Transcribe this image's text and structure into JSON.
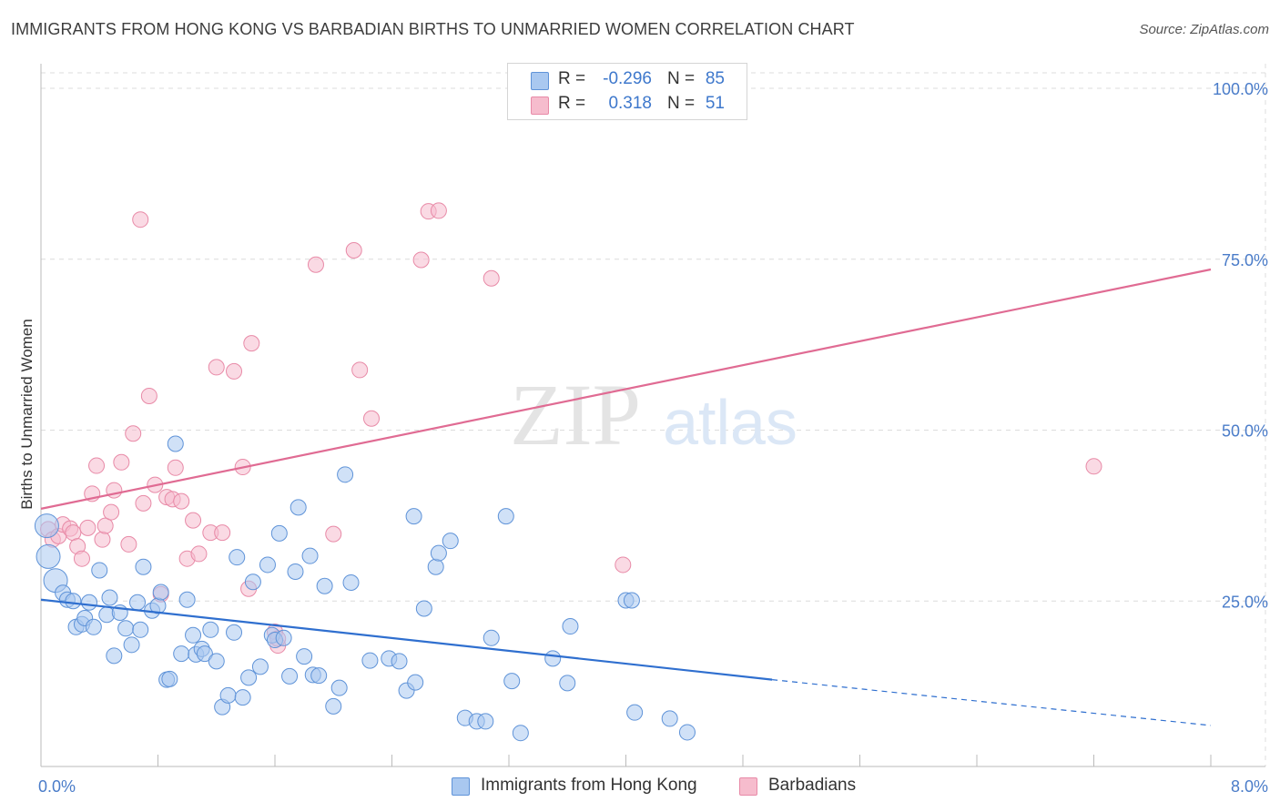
{
  "title": "IMMIGRANTS FROM HONG KONG VS BARBADIAN BIRTHS TO UNMARRIED WOMEN CORRELATION CHART",
  "source": "Source: ZipAtlas.com",
  "watermark": {
    "zip": "ZIP",
    "atlas": "atlas"
  },
  "colors": {
    "blue_fill": "#a9c8f0",
    "blue_stroke": "#5f93d8",
    "blue_line": "#2f6fcf",
    "pink_fill": "#f6bccd",
    "pink_stroke": "#e88aa7",
    "pink_line": "#e06b93",
    "tick_text": "#4a7cc9",
    "grid": "#dcdcdc"
  },
  "legend": {
    "rows": [
      {
        "r_label": "R =",
        "r_value": "-0.296",
        "n_label": "N =",
        "n_value": "85"
      },
      {
        "r_label": "R =",
        "r_value": "0.318",
        "n_label": "N =",
        "n_value": "51"
      }
    ]
  },
  "bottom_legend": {
    "series1": "Immigrants from Hong Kong",
    "series2": "Barbadians"
  },
  "chart_data": {
    "type": "scatter",
    "title": "IMMIGRANTS FROM HONG KONG VS BARBADIAN BIRTHS TO UNMARRIED WOMEN CORRELATION CHART",
    "xlabel": "",
    "ylabel": "Births to Unmarried Women",
    "xlim": [
      0,
      8
    ],
    "ylim": [
      0,
      103
    ],
    "x_tick_labels": [
      "0.0%",
      "8.0%"
    ],
    "y_ticks": [
      25,
      50,
      75,
      100
    ],
    "y_tick_labels": [
      "25.0%",
      "50.0%",
      "75.0%",
      "100.0%"
    ],
    "grid": true,
    "legend_position": "top-center",
    "series": [
      {
        "name": "Immigrants from Hong Kong",
        "color": "#a9c8f0",
        "trend": {
          "x": [
            0,
            5.0
          ],
          "y": [
            25.2,
            13.5
          ],
          "dashed_to": [
            8.0,
            6.8
          ]
        },
        "points": [
          [
            0.04,
            36.0
          ],
          [
            0.05,
            31.5
          ],
          [
            0.1,
            28.0
          ],
          [
            0.15,
            26.2
          ],
          [
            0.18,
            25.2
          ],
          [
            0.22,
            25.0
          ],
          [
            0.24,
            21.2
          ],
          [
            0.28,
            21.6
          ],
          [
            0.3,
            22.5
          ],
          [
            0.33,
            24.8
          ],
          [
            0.36,
            21.2
          ],
          [
            0.4,
            29.5
          ],
          [
            0.45,
            23.0
          ],
          [
            0.47,
            25.5
          ],
          [
            0.5,
            17.0
          ],
          [
            0.54,
            23.3
          ],
          [
            0.58,
            21.0
          ],
          [
            0.62,
            18.6
          ],
          [
            0.66,
            24.8
          ],
          [
            0.68,
            20.8
          ],
          [
            0.7,
            30.0
          ],
          [
            0.76,
            23.6
          ],
          [
            0.8,
            24.3
          ],
          [
            0.82,
            26.3
          ],
          [
            0.86,
            13.5
          ],
          [
            0.88,
            13.6
          ],
          [
            0.92,
            48.0
          ],
          [
            0.96,
            17.3
          ],
          [
            1.0,
            25.2
          ],
          [
            1.04,
            20.0
          ],
          [
            1.06,
            17.2
          ],
          [
            1.1,
            18.0
          ],
          [
            1.12,
            17.3
          ],
          [
            1.16,
            20.8
          ],
          [
            1.2,
            16.2
          ],
          [
            1.24,
            9.5
          ],
          [
            1.28,
            11.2
          ],
          [
            1.32,
            20.4
          ],
          [
            1.34,
            31.4
          ],
          [
            1.38,
            10.9
          ],
          [
            1.42,
            13.8
          ],
          [
            1.45,
            27.8
          ],
          [
            1.5,
            15.4
          ],
          [
            1.55,
            30.3
          ],
          [
            1.58,
            20.0
          ],
          [
            1.6,
            19.3
          ],
          [
            1.63,
            34.9
          ],
          [
            1.66,
            19.6
          ],
          [
            1.7,
            14.0
          ],
          [
            1.74,
            29.3
          ],
          [
            1.76,
            38.7
          ],
          [
            1.8,
            16.9
          ],
          [
            1.84,
            31.6
          ],
          [
            1.86,
            14.2
          ],
          [
            1.9,
            14.1
          ],
          [
            1.94,
            27.2
          ],
          [
            2.0,
            9.6
          ],
          [
            2.04,
            12.3
          ],
          [
            2.08,
            43.5
          ],
          [
            2.12,
            27.7
          ],
          [
            2.25,
            16.3
          ],
          [
            2.38,
            16.6
          ],
          [
            2.45,
            16.2
          ],
          [
            2.5,
            11.9
          ],
          [
            2.55,
            37.4
          ],
          [
            2.56,
            13.1
          ],
          [
            2.62,
            23.9
          ],
          [
            2.7,
            30.0
          ],
          [
            2.72,
            32.0
          ],
          [
            2.8,
            33.8
          ],
          [
            2.9,
            7.9
          ],
          [
            2.98,
            7.4
          ],
          [
            3.04,
            7.4
          ],
          [
            3.08,
            19.6
          ],
          [
            3.18,
            37.4
          ],
          [
            3.22,
            13.3
          ],
          [
            3.28,
            5.7
          ],
          [
            3.5,
            16.6
          ],
          [
            3.6,
            13.0
          ],
          [
            3.62,
            21.3
          ],
          [
            4.0,
            25.1
          ],
          [
            4.04,
            25.1
          ],
          [
            4.06,
            8.7
          ],
          [
            4.3,
            7.8
          ],
          [
            4.42,
            5.8
          ]
        ],
        "sizes_large": [
          [
            0.05,
            31.5
          ],
          [
            0.1,
            28.0
          ],
          [
            0.04,
            36.0
          ]
        ]
      },
      {
        "name": "Barbadians",
        "color": "#f6bccd",
        "trend": {
          "x": [
            0,
            8.0
          ],
          "y": [
            38.5,
            73.5
          ]
        },
        "points": [
          [
            0.05,
            35.5
          ],
          [
            0.08,
            34.0
          ],
          [
            0.12,
            34.5
          ],
          [
            0.15,
            36.2
          ],
          [
            0.2,
            35.6
          ],
          [
            0.22,
            35.0
          ],
          [
            0.25,
            33.0
          ],
          [
            0.28,
            31.2
          ],
          [
            0.32,
            35.7
          ],
          [
            0.35,
            40.7
          ],
          [
            0.38,
            44.8
          ],
          [
            0.42,
            34.0
          ],
          [
            0.44,
            36.0
          ],
          [
            0.48,
            38.0
          ],
          [
            0.5,
            41.2
          ],
          [
            0.55,
            45.3
          ],
          [
            0.6,
            33.3
          ],
          [
            0.63,
            49.5
          ],
          [
            0.68,
            80.8
          ],
          [
            0.7,
            39.3
          ],
          [
            0.74,
            55.0
          ],
          [
            0.78,
            42.0
          ],
          [
            0.82,
            26.0
          ],
          [
            0.86,
            40.2
          ],
          [
            0.9,
            39.9
          ],
          [
            0.92,
            44.5
          ],
          [
            0.96,
            39.6
          ],
          [
            1.0,
            31.2
          ],
          [
            1.04,
            36.8
          ],
          [
            1.08,
            31.9
          ],
          [
            1.16,
            35.0
          ],
          [
            1.2,
            59.2
          ],
          [
            1.24,
            35.0
          ],
          [
            1.32,
            58.6
          ],
          [
            1.38,
            44.6
          ],
          [
            1.42,
            26.8
          ],
          [
            1.44,
            62.7
          ],
          [
            1.6,
            20.5
          ],
          [
            1.62,
            18.5
          ],
          [
            1.88,
            74.2
          ],
          [
            2.0,
            34.8
          ],
          [
            2.14,
            76.3
          ],
          [
            2.18,
            58.8
          ],
          [
            2.26,
            51.7
          ],
          [
            2.6,
            74.9
          ],
          [
            2.65,
            82.0
          ],
          [
            2.72,
            82.1
          ],
          [
            3.08,
            72.2
          ],
          [
            3.98,
            30.3
          ],
          [
            7.2,
            44.7
          ],
          [
            1.62,
            19.5
          ]
        ]
      }
    ]
  }
}
